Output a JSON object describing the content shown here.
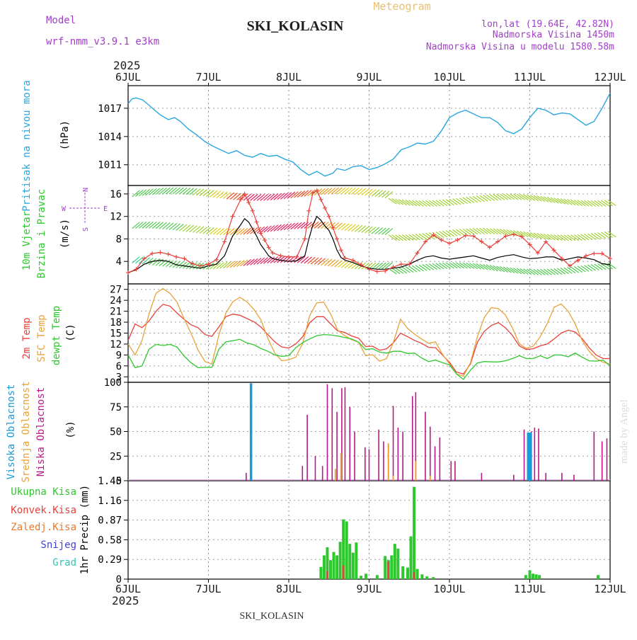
{
  "header": {
    "model_label": "Model",
    "model_name": "wrf-nmm_v3.9.1 e3km",
    "product": "Meteogram",
    "station": "SKI_KOLASIN",
    "coords": "lon,lat (19.64E, 42.82N)",
    "elevation": "Nadmorska Visina 1450m",
    "model_elevation": "Nadmorska Visina u modelu 1580.58m",
    "footer_station": "SKI_KOLASIN",
    "watermark": "made by Angel"
  },
  "colors": {
    "pressure": "#2aa6e0",
    "temp2m": "#e8403a",
    "sfc_temp": "#e8a23a",
    "dewpt": "#2ec82e",
    "high_cloud": "#1a9ad8",
    "mid_cloud": "#e8a23a",
    "low_cloud": "#b8188a",
    "total_precip": "#2ec82e",
    "convective": "#e8403a",
    "freezing": "#e87a2a",
    "snow": "#4040e0",
    "graupel": "#2ec8b8",
    "wind_speed": "#000000",
    "wind_gust": "#e8403a",
    "purple_label": "#a040c8",
    "title_gray": "#505050"
  },
  "chart_data": [
    {
      "id": "axis",
      "type": "time-axis",
      "year": "2025",
      "day_labels": [
        "6JUL",
        "7JUL",
        "8JUL",
        "9JUL",
        "10JUL",
        "11JUL",
        "12JUL"
      ]
    },
    {
      "id": "pressure",
      "type": "line",
      "ylabel_lines": [
        "Pritisak na nivou mora"
      ],
      "unit": "(hPa)",
      "ylim": [
        1008.8,
        1019.4
      ],
      "ticks": [
        1011,
        1014,
        1017
      ],
      "x_days": [
        0,
        0.05,
        0.1,
        0.18,
        0.25,
        0.33,
        0.4,
        0.5,
        0.58,
        0.65,
        0.75,
        0.85,
        0.95,
        1.05,
        1.15,
        1.25,
        1.35,
        1.45,
        1.55,
        1.65,
        1.75,
        1.85,
        1.95,
        2.05,
        2.15,
        2.25,
        2.35,
        2.45,
        2.55,
        2.6,
        2.7,
        2.8,
        2.9,
        3.0,
        3.1,
        3.2,
        3.3,
        3.4,
        3.5,
        3.6,
        3.7,
        3.8,
        3.9,
        4.0,
        4.1,
        4.2,
        4.3,
        4.4,
        4.5,
        4.6,
        4.7,
        4.8,
        4.9,
        5.0,
        5.1,
        5.2,
        5.3,
        5.4,
        5.5,
        5.6,
        5.7,
        5.8,
        5.9,
        6.0
      ],
      "values": [
        1017.5,
        1018,
        1018.1,
        1017.9,
        1017.4,
        1016.8,
        1016.3,
        1015.8,
        1016.0,
        1015.6,
        1014.8,
        1014.2,
        1013.5,
        1013.0,
        1012.6,
        1012.2,
        1012.5,
        1012.0,
        1011.8,
        1012.2,
        1011.9,
        1012.0,
        1011.6,
        1011.3,
        1010.5,
        1009.9,
        1010.3,
        1009.8,
        1010.1,
        1010.6,
        1010.4,
        1010.8,
        1010.9,
        1010.5,
        1010.7,
        1011.1,
        1011.6,
        1012.6,
        1012.9,
        1013.3,
        1013.2,
        1013.5,
        1014.6,
        1016.0,
        1016.5,
        1016.8,
        1016.4,
        1016.0,
        1016.0,
        1015.5,
        1014.6,
        1014.3,
        1014.8,
        1016.0,
        1017.0,
        1016.8,
        1016.3,
        1016.5,
        1016.4,
        1015.8,
        1015.2,
        1015.6,
        1017.0,
        1018.6
      ]
    },
    {
      "id": "wind",
      "type": "line+barbs",
      "ylabel_lines": [
        "10m Vjetar",
        "Brzina i Pravac"
      ],
      "unit": "(m/s)",
      "compass": [
        "N",
        "S",
        "W",
        "E"
      ],
      "ylim": [
        0,
        17.5
      ],
      "ticks": [
        4,
        8,
        12,
        16
      ],
      "x_days": [
        0,
        0.1,
        0.2,
        0.3,
        0.4,
        0.5,
        0.6,
        0.7,
        0.8,
        0.9,
        1.0,
        1.1,
        1.2,
        1.3,
        1.4,
        1.45,
        1.5,
        1.55,
        1.6,
        1.65,
        1.7,
        1.75,
        1.8,
        1.9,
        2.0,
        2.1,
        2.2,
        2.25,
        2.3,
        2.35,
        2.4,
        2.45,
        2.5,
        2.55,
        2.6,
        2.65,
        2.7,
        2.8,
        2.9,
        3.0,
        3.1,
        3.2,
        3.3,
        3.4,
        3.5,
        3.6,
        3.7,
        3.8,
        3.9,
        4.0,
        4.1,
        4.2,
        4.3,
        4.4,
        4.5,
        4.6,
        4.7,
        4.8,
        4.9,
        5.0,
        5.1,
        5.2,
        5.3,
        5.4,
        5.5,
        5.6,
        5.7,
        5.8,
        5.9,
        6.0
      ],
      "speed": [
        2.0,
        2.5,
        3.5,
        4.0,
        4.2,
        4.0,
        3.4,
        3.2,
        3.0,
        2.8,
        3.2,
        3.5,
        5.0,
        8.5,
        10.5,
        11.6,
        11.0,
        9.8,
        8.5,
        7.0,
        6.0,
        5.0,
        4.5,
        4.2,
        4.0,
        4.1,
        5.0,
        8.0,
        10.5,
        12.0,
        11.3,
        10.3,
        9.5,
        8.0,
        6.0,
        4.7,
        4.2,
        3.8,
        3.2,
        2.8,
        2.6,
        2.6,
        2.8,
        3.0,
        3.5,
        4.2,
        4.8,
        5.0,
        4.6,
        4.4,
        4.6,
        4.8,
        5.0,
        4.6,
        4.2,
        4.7,
        5.0,
        5.2,
        4.8,
        4.5,
        4.6,
        4.8,
        4.8,
        4.2,
        4.5,
        4.8,
        4.6,
        4.3,
        3.6,
        3.4
      ],
      "gust": [
        2.0,
        2.6,
        4.5,
        5.4,
        5.6,
        5.3,
        4.8,
        4.5,
        3.6,
        3.2,
        3.5,
        4.3,
        7.5,
        12.0,
        15.0,
        16.0,
        14.5,
        13.0,
        11.0,
        9.0,
        7.8,
        6.5,
        5.5,
        5.0,
        4.8,
        4.8,
        8.0,
        13.0,
        16.2,
        16.6,
        15.0,
        13.5,
        12.0,
        10.0,
        8.0,
        6.0,
        4.6,
        4.2,
        3.4,
        2.6,
        2.2,
        2.3,
        3.0,
        3.5,
        3.5,
        5.5,
        7.5,
        8.7,
        7.8,
        7.2,
        7.8,
        8.6,
        8.5,
        7.5,
        6.5,
        7.5,
        8.5,
        8.8,
        8.4,
        7.0,
        5.5,
        7.5,
        6.0,
        4.5,
        3.2,
        4.2,
        5.0,
        5.4,
        5.4,
        4.5
      ]
    },
    {
      "id": "temperature",
      "type": "line",
      "ylabel_lines": [
        "2m Temp",
        "SFC Temp",
        "dewpt Temp"
      ],
      "unit": "(C)",
      "ylim": [
        1.5,
        28.5
      ],
      "ticks": [
        3,
        6,
        9,
        12,
        15,
        18,
        21,
        24,
        27
      ],
      "series": [
        {
          "name": "2m Temp",
          "values": [
            13,
            17.5,
            16.5,
            18.3,
            21.0,
            22.9,
            22.4,
            20.5,
            18.8,
            17.3,
            16.5,
            14.6,
            14.1,
            16.7,
            19.5,
            20.2,
            19.9,
            19.0,
            18.1,
            16.7,
            14.6,
            12.6,
            11.2,
            10.9,
            12.0,
            14.0,
            17.9,
            19.5,
            19.5,
            17.5,
            15.6,
            15.2,
            14.2,
            13.6,
            11.3,
            11.4,
            10.3,
            10.7,
            12.4,
            15.0,
            14.0,
            13.0,
            12.2,
            11.1,
            11.0,
            9.0,
            7.0,
            4.3,
            3.8,
            6.5,
            12.5,
            15.5,
            17.1,
            17.9,
            16.5,
            14.4,
            11.5,
            10.5,
            10.7,
            11.5,
            12.0,
            13.4,
            15.0,
            15.8,
            15.3,
            13.5,
            11.0,
            9.0,
            8.0,
            8.0
          ]
        },
        {
          "name": "SFC Temp",
          "values": [
            12,
            9,
            13,
            20.3,
            26.0,
            27.2,
            25.9,
            23.5,
            19.0,
            15.0,
            10.4,
            7.2,
            6.5,
            14.5,
            20.5,
            23.6,
            24.8,
            23.6,
            21.5,
            18.7,
            13.6,
            9.5,
            7.4,
            7.7,
            8.4,
            12.2,
            19.8,
            23.3,
            23.5,
            20.2,
            15.8,
            14.3,
            13.2,
            12.5,
            8.8,
            9.1,
            7.3,
            8.0,
            12.6,
            18.8,
            16.3,
            14.7,
            13.4,
            12.2,
            12.6,
            9.2,
            6.6,
            3.8,
            3.2,
            6.8,
            14.0,
            19.3,
            22.0,
            21.7,
            20.0,
            16.5,
            12.1,
            10.8,
            11.4,
            14.0,
            17.6,
            22.1,
            23.0,
            21.0,
            17.5,
            13.0,
            10.0,
            8.0,
            7.0,
            6.5
          ]
        },
        {
          "name": "dewpt Temp",
          "values": [
            9,
            5.5,
            6.0,
            10.6,
            11.9,
            11.6,
            11.9,
            11.2,
            8.7,
            6.9,
            5.5,
            5.6,
            5.6,
            10.6,
            12.6,
            12.9,
            13.3,
            12.3,
            11.8,
            10.8,
            10.0,
            9.0,
            8.6,
            8.8,
            11.0,
            12.4,
            13.4,
            14.3,
            14.6,
            14.5,
            14.2,
            13.8,
            13.4,
            12.5,
            10.5,
            10.7,
            9.8,
            9.5,
            10.0,
            10.0,
            9.4,
            9.5,
            8.2,
            7.2,
            7.6,
            6.9,
            6.3,
            3.8,
            2.3,
            4.8,
            6.8,
            7.2,
            7.1,
            7.1,
            7.4,
            8.0,
            8.8,
            8.0,
            8.0,
            8.8,
            8.0,
            9.0,
            9.0,
            8.5,
            9.5,
            8.4,
            7.4,
            7.3,
            7.6,
            6.0
          ]
        }
      ]
    },
    {
      "id": "clouds",
      "type": "bar",
      "ylabel_lines": [
        "Visoka Oblacnost",
        "Srednja Oblacnost",
        "Niska Oblacnost"
      ],
      "unit": "(%)",
      "ylim": [
        0,
        100
      ],
      "ticks": [
        0,
        25,
        50,
        75,
        100
      ],
      "high": [
        {
          "x": 1.53,
          "v": 99
        },
        {
          "x": 4.98,
          "v": 49
        },
        {
          "x": 5.01,
          "v": 49
        }
      ],
      "mid": [
        {
          "x": 2.58,
          "v": 12
        },
        {
          "x": 2.65,
          "v": 28
        },
        {
          "x": 3.24,
          "v": 38
        },
        {
          "x": 3.3,
          "v": 5
        },
        {
          "x": 3.58,
          "v": 20
        },
        {
          "x": 3.76,
          "v": 5
        }
      ],
      "low": [
        {
          "x": 1.47,
          "v": 8
        },
        {
          "x": 2.17,
          "v": 15
        },
        {
          "x": 2.23,
          "v": 67
        },
        {
          "x": 2.33,
          "v": 25
        },
        {
          "x": 2.42,
          "v": 15
        },
        {
          "x": 2.48,
          "v": 98
        },
        {
          "x": 2.54,
          "v": 94
        },
        {
          "x": 2.6,
          "v": 70
        },
        {
          "x": 2.66,
          "v": 94
        },
        {
          "x": 2.7,
          "v": 95
        },
        {
          "x": 2.76,
          "v": 75
        },
        {
          "x": 2.82,
          "v": 50
        },
        {
          "x": 2.95,
          "v": 34
        },
        {
          "x": 3.0,
          "v": 32
        },
        {
          "x": 3.12,
          "v": 52
        },
        {
          "x": 3.18,
          "v": 40
        },
        {
          "x": 3.3,
          "v": 76
        },
        {
          "x": 3.36,
          "v": 54
        },
        {
          "x": 3.42,
          "v": 50
        },
        {
          "x": 3.54,
          "v": 86
        },
        {
          "x": 3.58,
          "v": 90
        },
        {
          "x": 3.7,
          "v": 70
        },
        {
          "x": 3.76,
          "v": 55
        },
        {
          "x": 3.82,
          "v": 35
        },
        {
          "x": 3.88,
          "v": 44
        },
        {
          "x": 4.02,
          "v": 20
        },
        {
          "x": 4.07,
          "v": 20
        },
        {
          "x": 4.4,
          "v": 8
        },
        {
          "x": 4.8,
          "v": 6
        },
        {
          "x": 4.93,
          "v": 52
        },
        {
          "x": 5.02,
          "v": 50
        },
        {
          "x": 5.06,
          "v": 54
        },
        {
          "x": 5.11,
          "v": 53
        },
        {
          "x": 5.2,
          "v": 8
        },
        {
          "x": 5.4,
          "v": 8
        },
        {
          "x": 5.55,
          "v": 6
        },
        {
          "x": 5.8,
          "v": 50
        },
        {
          "x": 5.9,
          "v": 40
        },
        {
          "x": 5.96,
          "v": 43
        }
      ]
    },
    {
      "id": "precip",
      "type": "bar",
      "ylabel_lines": [
        "1hr Precip (mm)"
      ],
      "legend": [
        "Ukupna Kisa",
        "Konvek.Kisa",
        "Zaledj.Kisa",
        "Snijeg",
        "Grad"
      ],
      "ylim": [
        0,
        1.45
      ],
      "ticks": [
        0,
        0.29,
        0.58,
        0.87,
        1.16,
        1.45
      ],
      "tick_labels": [
        "0",
        "0.29",
        "0.58",
        "0.87",
        "1.16",
        "1.45"
      ],
      "total": [
        {
          "x": 2.4,
          "v": 0.18
        },
        {
          "x": 2.44,
          "v": 0.35
        },
        {
          "x": 2.48,
          "v": 0.47
        },
        {
          "x": 2.52,
          "v": 0.28
        },
        {
          "x": 2.56,
          "v": 0.4
        },
        {
          "x": 2.6,
          "v": 0.35
        },
        {
          "x": 2.64,
          "v": 0.55
        },
        {
          "x": 2.68,
          "v": 0.88
        },
        {
          "x": 2.72,
          "v": 0.85
        },
        {
          "x": 2.76,
          "v": 0.52
        },
        {
          "x": 2.8,
          "v": 0.39
        },
        {
          "x": 2.84,
          "v": 0.54
        },
        {
          "x": 2.9,
          "v": 0.05
        },
        {
          "x": 2.96,
          "v": 0.08
        },
        {
          "x": 3.1,
          "v": 0.06
        },
        {
          "x": 3.2,
          "v": 0.34
        },
        {
          "x": 3.24,
          "v": 0.28
        },
        {
          "x": 3.28,
          "v": 0.35
        },
        {
          "x": 3.32,
          "v": 0.52
        },
        {
          "x": 3.36,
          "v": 0.45
        },
        {
          "x": 3.42,
          "v": 0.19
        },
        {
          "x": 3.48,
          "v": 0.17
        },
        {
          "x": 3.52,
          "v": 0.63
        },
        {
          "x": 3.56,
          "v": 1.36
        },
        {
          "x": 3.6,
          "v": 0.15
        },
        {
          "x": 3.66,
          "v": 0.07
        },
        {
          "x": 3.72,
          "v": 0.04
        },
        {
          "x": 3.8,
          "v": 0.03
        },
        {
          "x": 4.95,
          "v": 0.06
        },
        {
          "x": 5.0,
          "v": 0.13
        },
        {
          "x": 5.04,
          "v": 0.08
        },
        {
          "x": 5.08,
          "v": 0.07
        },
        {
          "x": 5.12,
          "v": 0.06
        },
        {
          "x": 5.85,
          "v": 0.06
        }
      ],
      "convective": [
        {
          "x": 2.48,
          "v": 0.12
        },
        {
          "x": 2.68,
          "v": 0.2
        },
        {
          "x": 3.24,
          "v": 0.26
        },
        {
          "x": 3.56,
          "v": 0.1
        }
      ]
    }
  ]
}
